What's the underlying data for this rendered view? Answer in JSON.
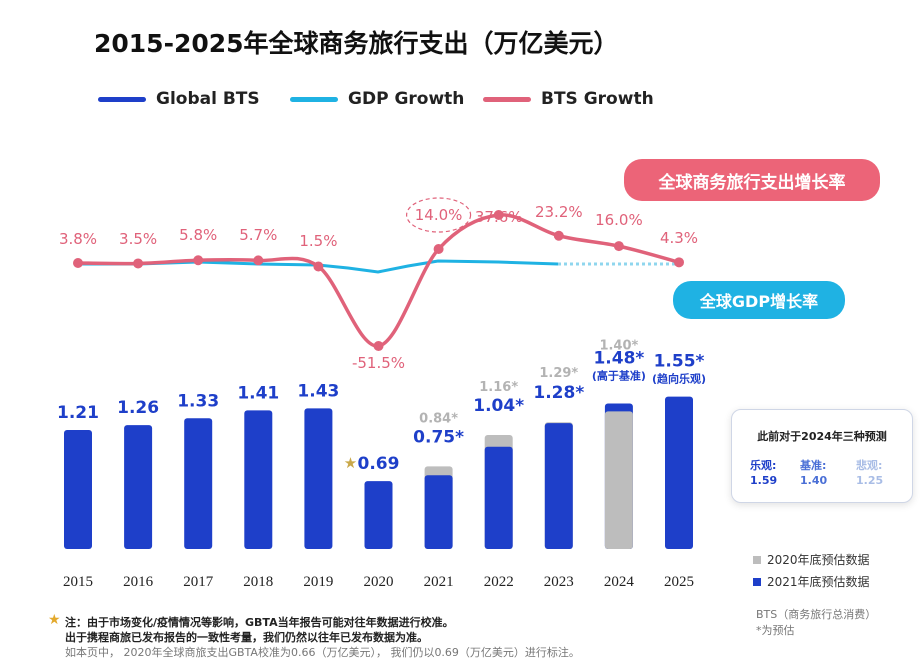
{
  "title": "2015-2025年全球商务旅行支出（万亿美元）",
  "legend": [
    {
      "label": "Global BTS",
      "color": "#1e3fc9"
    },
    {
      "label": "GDP Growth",
      "color": "#1fb2e3"
    },
    {
      "label": "BTS Growth",
      "color": "#e0627a"
    }
  ],
  "pills": {
    "bts_growth": "全球商务旅行支出增长率",
    "gdp_growth": "全球GDP增长率"
  },
  "colors": {
    "bar_blue": "#1e3fc9",
    "bar_gray": "#bdbdbd",
    "bts_line": "#e0627a",
    "gdp_line": "#1fb2e3",
    "pink_pill": "#ec6478",
    "blue_pill": "#1fb2e3"
  },
  "chart_data": {
    "type": "bar",
    "categories": [
      "2015",
      "2016",
      "2017",
      "2018",
      "2019",
      "2020",
      "2021",
      "2022",
      "2023",
      "2024",
      "2025"
    ],
    "series": [
      {
        "name": "2021年底预估数据",
        "values": [
          1.21,
          1.26,
          1.33,
          1.41,
          1.43,
          0.69,
          0.75,
          1.04,
          1.28,
          1.48,
          1.55
        ],
        "labels": [
          "1.21",
          "1.26",
          "1.33",
          "1.41",
          "1.43",
          "0.69",
          "0.75*",
          "1.04*",
          "1.28*",
          "1.48*",
          "1.55*"
        ]
      },
      {
        "name": "2020年底预估数据",
        "values": [
          null,
          null,
          null,
          null,
          null,
          null,
          0.84,
          1.16,
          1.29,
          1.4,
          null
        ],
        "labels": [
          "",
          "",
          "",
          "",
          "",
          "",
          "0.84*",
          "1.16*",
          "1.29*",
          "1.40*",
          ""
        ]
      }
    ],
    "bar_annotations": {
      "2024": "(高于基准)",
      "2025": "(趋向乐观)"
    },
    "bts_growth": {
      "name": "BTS Growth",
      "values": [
        3.8,
        3.5,
        5.8,
        5.7,
        1.5,
        -51.5,
        14.0,
        37.6,
        23.2,
        16.0,
        4.3
      ],
      "labels": [
        "3.8%",
        "3.5%",
        "5.8%",
        "5.7%",
        "1.5%",
        "-51.5%",
        "14.0%",
        "37.6%",
        "23.2%",
        "16.0%",
        "4.3%"
      ]
    },
    "gdp_growth": {
      "name": "GDP Growth",
      "estimate_from": "2023"
    }
  },
  "scenarios": {
    "title": "此前对于2024年三种预测",
    "items": [
      {
        "label": "乐观:",
        "value": "1.59",
        "color": "#1e3fc9"
      },
      {
        "label": "基准:",
        "value": "1.40",
        "color": "#4a6fd6"
      },
      {
        "label": "悲观:",
        "value": "1.25",
        "color": "#a9bde6"
      }
    ]
  },
  "bar_legend": [
    {
      "label": "2020年底预估数据",
      "color": "#bdbdbd"
    },
    {
      "label": "2021年底预估数据",
      "color": "#1e3fc9"
    }
  ],
  "side_notes": [
    "BTS（商务旅行总消费）",
    "*为预估"
  ],
  "notes": {
    "line1": "注：由于市场变化/疫情情况等影响，GBTA当年报告可能对往年数据进行校准。",
    "line2": "出于携程商旅已发布报告的一致性考量，我们仍然以往年已发布数据为准。",
    "line3": "如本页中， 2020年全球商旅支出GBTA校准为0.66（万亿美元）， 我们仍以0.69（万亿美元）进行标注。"
  }
}
